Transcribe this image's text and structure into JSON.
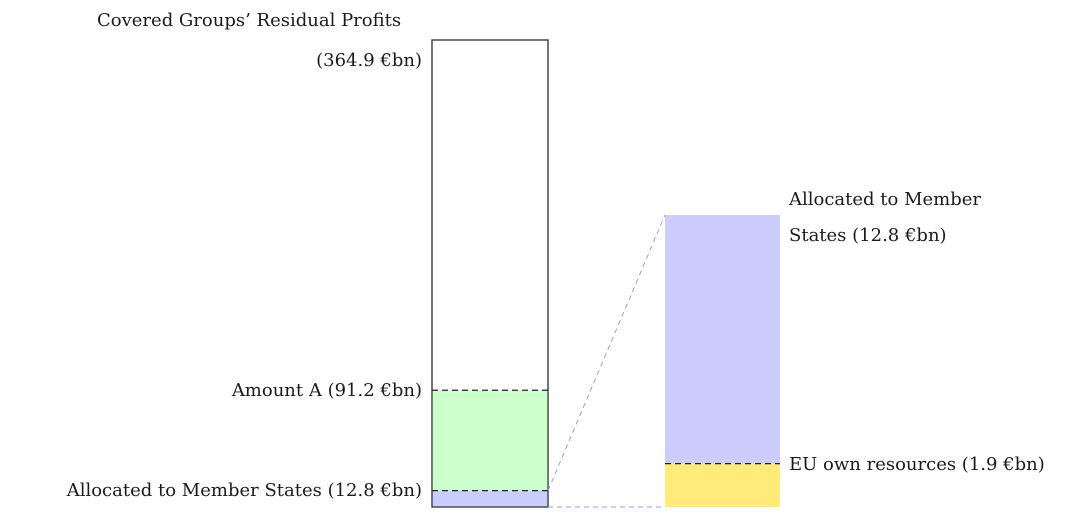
{
  "diagram": {
    "title": "Covered Groups’ Residual Profits",
    "total_label": "(364.9 €bn)",
    "amount_a_label": "Amount A (91.2 €bn)",
    "member_states_left_label": "Allocated to Member States (12.8 €bn)",
    "member_states_right_label_line1": "Allocated to Member",
    "member_states_right_label_line2": "States (12.8 €bn)",
    "eu_resources_label": "EU own resources (1.9 €bn)"
  },
  "chart_data": {
    "type": "bar",
    "unit": "€bn",
    "left_bar": {
      "total": 364.9,
      "amount_a": 91.2,
      "allocated_to_member_states": 12.8
    },
    "right_bar": {
      "allocated_to_member_states": 12.8,
      "eu_own_resources": 1.9
    }
  },
  "colors": {
    "amount_a_fill": "#ccffcc",
    "member_states_fill": "#ccccff",
    "eu_resources_fill": "#ffea7a",
    "connector": "#9999ee",
    "outline": "#333333"
  }
}
